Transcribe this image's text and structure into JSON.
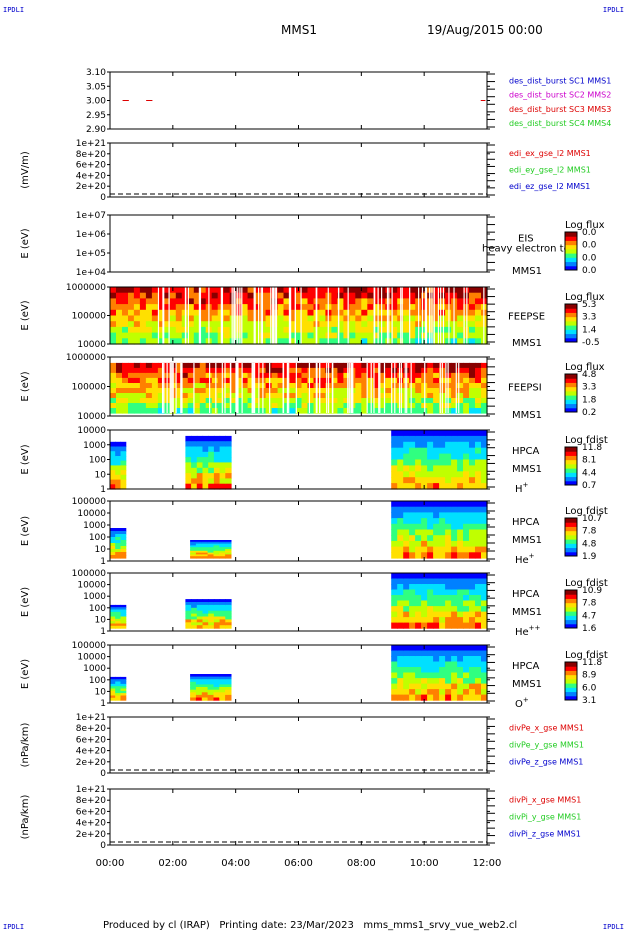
{
  "corner_label": "IPDLI",
  "header": {
    "mission": "MMS1",
    "date": "19/Aug/2015 00:00"
  },
  "footer": "Produced by cl (IRAP)   Printing date: 23/Mar/2023   mms_mms1_srvy_vue_web2.cl",
  "colors": {
    "red": "#dd0000",
    "magenta": "#cc00cc",
    "green": "#22cc22",
    "blue": "#0000cc",
    "colorbar": [
      "#0000ff",
      "#0080ff",
      "#00e0ff",
      "#30ff80",
      "#c0ff00",
      "#ffe000",
      "#ff8000",
      "#ff0000",
      "#880000"
    ]
  },
  "chart_data": {
    "type": "heatmap",
    "time_axis": {
      "ticks": [
        "00:00",
        "02:00",
        "04:00",
        "06:00",
        "08:00",
        "10:00",
        "12:00"
      ],
      "range_hours": [
        0,
        12
      ]
    },
    "panels": [
      {
        "id": "des_dist_burst",
        "type": "scatter",
        "ytick_labels": [
          "3.10",
          "3.05",
          "3.00",
          "2.95",
          "2.90"
        ],
        "ylim": [
          2.9,
          3.1
        ],
        "series": [
          {
            "name": "des_dist_burst SC1 MMS1",
            "color": "blue",
            "segments": []
          },
          {
            "name": "des_dist_burst SC2 MMS2",
            "color": "magenta",
            "segments": []
          },
          {
            "name": "des_dist_burst SC3 MMS3",
            "color": "red",
            "segments": [
              [
                0.4,
                0.6,
                3.0
              ],
              [
                1.15,
                1.35,
                3.0
              ],
              [
                11.8,
                11.95,
                3.0
              ]
            ]
          },
          {
            "name": "des_dist_burst SC4 MMS4",
            "color": "green",
            "segments": []
          }
        ]
      },
      {
        "id": "edi_e_gse",
        "type": "line",
        "ylabel": "(mV/m)",
        "ytick_labels": [
          "1e+21",
          "8e+20",
          "6e+20",
          "4e+20",
          "2e+20",
          "0"
        ],
        "ylim": [
          0,
          1e+21
        ],
        "series": [
          {
            "name": "edi_ex_gse_l2 MMS1",
            "color": "red"
          },
          {
            "name": "edi_ey_gse_l2 MMS1",
            "color": "green"
          },
          {
            "name": "edi_ez_gse_l2 MMS1",
            "color": "blue"
          }
        ]
      },
      {
        "id": "eis",
        "type": "heatmap",
        "ylabel": "E (eV)",
        "ytick_labels": [
          "1e+07",
          "1e+06",
          "1e+05",
          "1e+04"
        ],
        "labels": [
          "EIS",
          "heavy electron to",
          "MMS1"
        ],
        "colorbar_title": "Log flux",
        "colorbar_ticks": [
          "0.0",
          "0.0",
          "0.0",
          "0.0"
        ],
        "blocks": []
      },
      {
        "id": "feeps_e",
        "type": "heatmap",
        "ylabel": "E (eV)",
        "ytick_labels": [
          "1000000",
          "100000",
          "10000"
        ],
        "labels": [
          "FEEPSE",
          "MMS1"
        ],
        "colorbar_title": "Log flux",
        "colorbar_ticks": [
          "5.3",
          "3.3",
          "1.4",
          "-0.5"
        ],
        "blocks": [
          [
            0,
            12,
            0.0,
            1.0
          ]
        ]
      },
      {
        "id": "feeps_i",
        "type": "heatmap",
        "ylabel": "E (eV)",
        "ytick_labels": [
          "1000000",
          "100000",
          "10000"
        ],
        "labels": [
          "FEEPSI",
          "MMS1"
        ],
        "colorbar_title": "Log flux",
        "colorbar_ticks": [
          "4.8",
          "3.3",
          "1.8",
          "0.2"
        ],
        "blocks": [
          [
            0,
            12,
            0.1,
            0.95
          ]
        ]
      },
      {
        "id": "hpca_h",
        "type": "heatmap",
        "ylabel": "E (eV)",
        "ytick_labels": [
          "10000",
          "1000",
          "100",
          "10",
          "1"
        ],
        "labels": [
          "HPCA",
          "MMS1"
        ],
        "species": "H",
        "species_sup": "+",
        "colorbar_title": "Log fdist",
        "colorbar_ticks": [
          "11.8",
          "8.1",
          "4.4",
          "0.7"
        ],
        "blocks": [
          [
            0,
            0.5,
            0.2,
            1.0
          ],
          [
            2.4,
            3.85,
            0.1,
            1.0
          ],
          [
            8.95,
            12,
            0.0,
            1.0
          ]
        ]
      },
      {
        "id": "hpca_he",
        "type": "heatmap",
        "ylabel": "E (eV)",
        "ytick_labels": [
          "100000",
          "10000",
          "1000",
          "100",
          "10",
          "1"
        ],
        "labels": [
          "HPCA",
          "MMS1"
        ],
        "species": "He",
        "species_sup": "+",
        "colorbar_title": "Log fdist",
        "colorbar_ticks": [
          "10.7",
          "7.8",
          "4.8",
          "1.9"
        ],
        "blocks": [
          [
            0,
            0.5,
            0.45,
            0.95
          ],
          [
            2.55,
            3.85,
            0.65,
            0.95
          ],
          [
            8.95,
            12,
            0.0,
            0.95
          ]
        ]
      },
      {
        "id": "hpca_he2",
        "type": "heatmap",
        "ylabel": "E (eV)",
        "ytick_labels": [
          "100000",
          "10000",
          "1000",
          "100",
          "10",
          "1"
        ],
        "labels": [
          "HPCA",
          "MMS1"
        ],
        "species": "He",
        "species_sup": "++",
        "colorbar_title": "Log fdist",
        "colorbar_ticks": [
          "10.9",
          "7.8",
          "4.7",
          "1.6"
        ],
        "blocks": [
          [
            0,
            0.5,
            0.55,
            0.95
          ],
          [
            2.4,
            3.85,
            0.45,
            0.95
          ],
          [
            8.95,
            12,
            0.0,
            0.95
          ]
        ]
      },
      {
        "id": "hpca_o",
        "type": "heatmap",
        "ylabel": "E (eV)",
        "ytick_labels": [
          "100000",
          "10000",
          "1000",
          "100",
          "10",
          "1"
        ],
        "labels": [
          "HPCA",
          "MMS1"
        ],
        "species": "O",
        "species_sup": "+",
        "colorbar_title": "Log fdist",
        "colorbar_ticks": [
          "11.8",
          "8.9",
          "6.0",
          "3.1"
        ],
        "blocks": [
          [
            0,
            0.5,
            0.55,
            0.95
          ],
          [
            2.55,
            3.85,
            0.5,
            0.95
          ],
          [
            8.95,
            12,
            0.0,
            0.95
          ]
        ]
      },
      {
        "id": "divpe",
        "type": "line",
        "ylabel": "(nPa/km)",
        "ytick_labels": [
          "1e+21",
          "8e+20",
          "6e+20",
          "4e+20",
          "2e+20",
          "0"
        ],
        "ylim": [
          0,
          1e+21
        ],
        "series": [
          {
            "name": "divPe_x_gse MMS1",
            "color": "red"
          },
          {
            "name": "divPe_y_gse MMS1",
            "color": "green"
          },
          {
            "name": "divPe_z_gse MMS1",
            "color": "blue"
          }
        ]
      },
      {
        "id": "divpi",
        "type": "line",
        "ylabel": "(nPa/km)",
        "ytick_labels": [
          "1e+21",
          "8e+20",
          "6e+20",
          "4e+20",
          "2e+20",
          "0"
        ],
        "ylim": [
          0,
          1e+21
        ],
        "series": [
          {
            "name": "divPi_x_gse MMS1",
            "color": "red"
          },
          {
            "name": "divPi_y_gse MMS1",
            "color": "green"
          },
          {
            "name": "divPi_z_gse MMS1",
            "color": "blue"
          }
        ]
      }
    ]
  }
}
